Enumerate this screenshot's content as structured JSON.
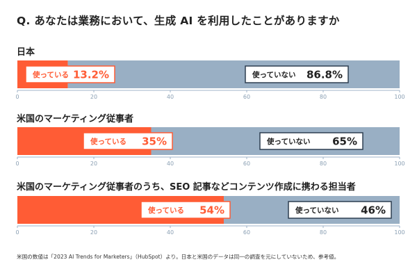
{
  "title": "Q. あなたは業務において、生成 AI を利用したことがありますか",
  "note": "米国の数値は「2023 AI Trends for Marketers」（HubSpot）より。日本と米国のデータは同一の調査を元にしていないため、参考値。",
  "colors": {
    "used": "#ff5c35",
    "not_used": "#99afc4",
    "axis": "#9fb3c8",
    "label_border": "#2d3e50"
  },
  "chart_data": [
    {
      "type": "bar",
      "stacked": true,
      "orientation": "horizontal",
      "title": "日本",
      "xlim": [
        0,
        100
      ],
      "ticks": [
        "0",
        "20",
        "40",
        "60",
        "80",
        "100"
      ],
      "series": [
        {
          "name": "使っている",
          "value": 13.2,
          "label": "13.2%"
        },
        {
          "name": "使っていない",
          "value": 86.8,
          "label": "86.8%"
        }
      ]
    },
    {
      "type": "bar",
      "stacked": true,
      "orientation": "horizontal",
      "title": "米国のマーケティング従事者",
      "xlim": [
        0,
        100
      ],
      "ticks": [
        "0",
        "20",
        "40",
        "60",
        "80",
        "100"
      ],
      "series": [
        {
          "name": "使っている",
          "value": 35,
          "label": "35%"
        },
        {
          "name": "使っていない",
          "value": 65,
          "label": "65%"
        }
      ]
    },
    {
      "type": "bar",
      "stacked": true,
      "orientation": "horizontal",
      "title": "米国のマーケティング従事者のうち、SEO 記事などコンテンツ作成に携わる担当者",
      "xlim": [
        0,
        100
      ],
      "ticks": [
        "0",
        "20",
        "40",
        "60",
        "80",
        "100"
      ],
      "series": [
        {
          "name": "使っている",
          "value": 54,
          "label": "54%"
        },
        {
          "name": "使っていない",
          "value": 46,
          "label": "46%"
        }
      ]
    }
  ]
}
